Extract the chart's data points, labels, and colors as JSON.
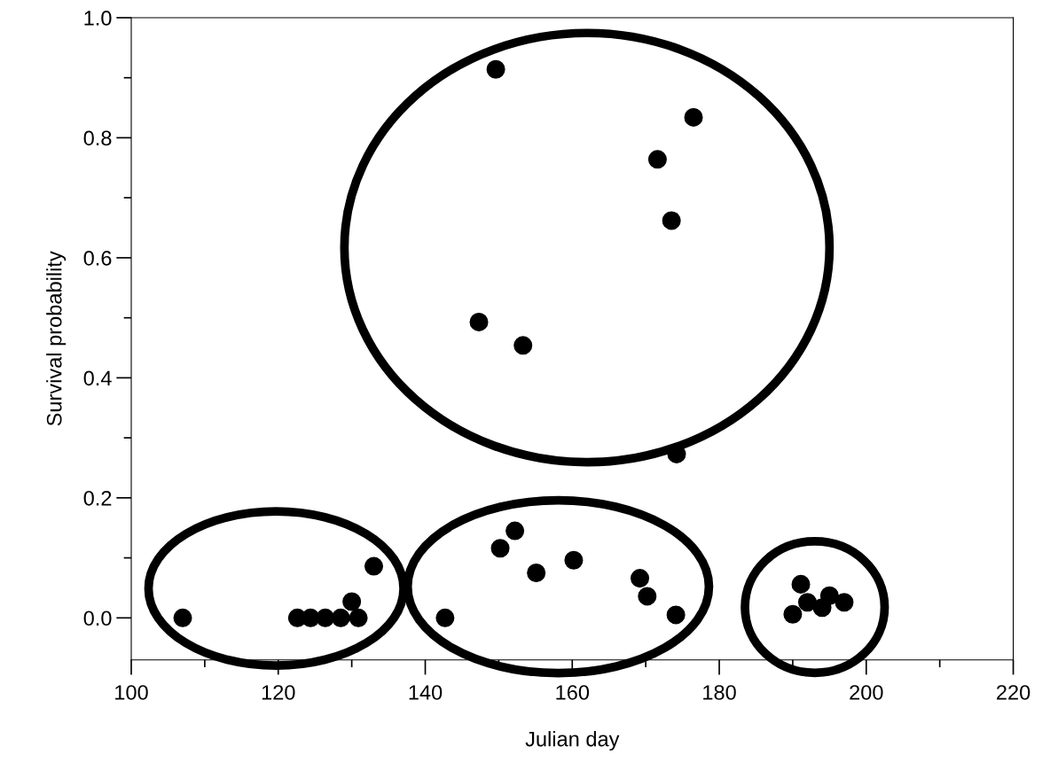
{
  "chart_data": {
    "type": "scatter",
    "xlabel": "Julian day",
    "ylabel": "Survival probability",
    "x": [
      107,
      122.6,
      124.4,
      126.4,
      128.5,
      130.0,
      130.9,
      133.0,
      142.7,
      150.2,
      152.2,
      155.1,
      160.2,
      169.2,
      170.2,
      174.1,
      190.0,
      191.1,
      192.0,
      194.0,
      195.0,
      197.0,
      149.6,
      176.5,
      171.6,
      173.5,
      147.3,
      153.3,
      174.2
    ],
    "values": [
      0.0,
      0.0,
      0.0,
      0.0,
      0.0,
      0.027,
      0.0,
      0.086,
      0.0,
      0.116,
      0.145,
      0.075,
      0.096,
      0.066,
      0.036,
      0.005,
      0.006,
      0.056,
      0.026,
      0.017,
      0.037,
      0.026,
      0.914,
      0.834,
      0.764,
      0.662,
      0.493,
      0.454,
      0.273
    ],
    "color": "#000000",
    "marker": "circle",
    "grid": false,
    "legend": false,
    "xlim": [
      100,
      220
    ],
    "ylim": [
      -0.07,
      1.0
    ],
    "xticks": [
      100,
      120,
      140,
      160,
      180,
      200,
      220
    ],
    "yticks": [
      {
        "value": 0,
        "label": "0.0"
      },
      0.2,
      0.4,
      0.6,
      0.8,
      {
        "value": 1,
        "label": "1.0"
      }
    ]
  }
}
